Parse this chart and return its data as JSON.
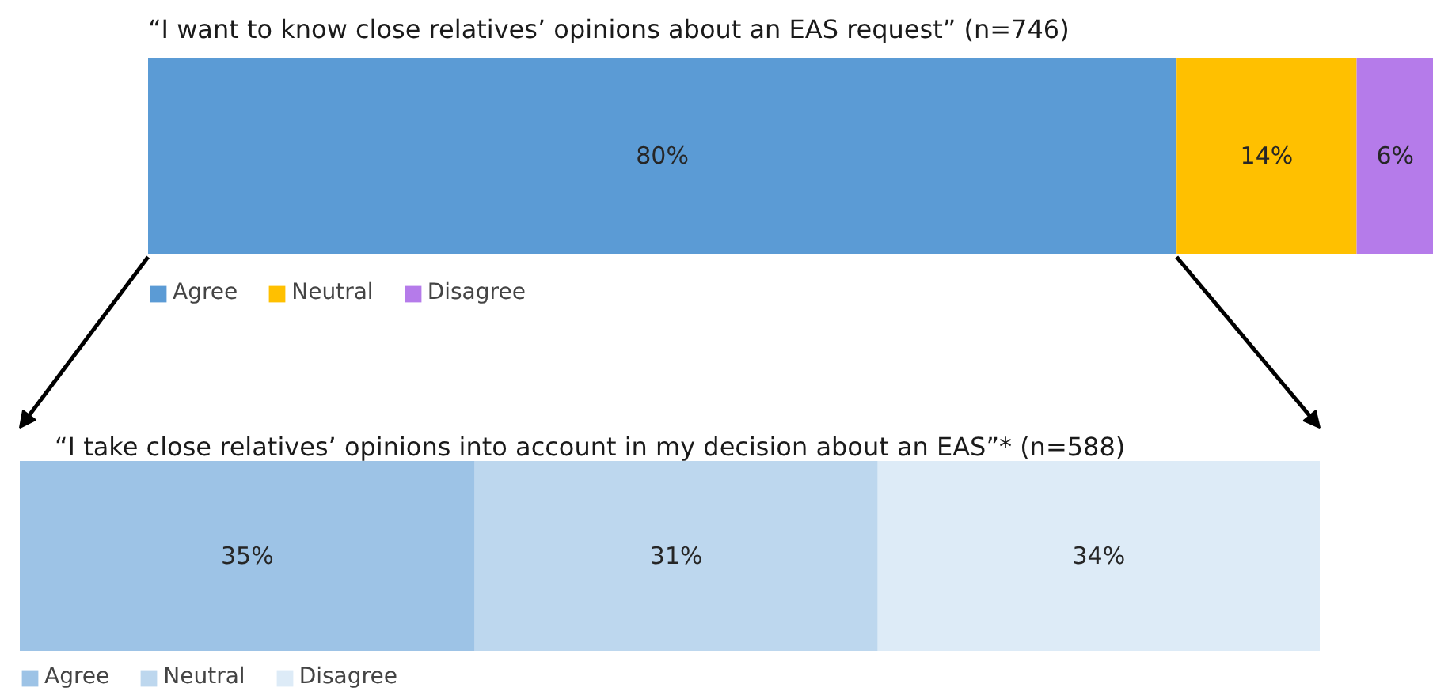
{
  "chart_data": [
    {
      "type": "bar",
      "orientation": "horizontal",
      "stacked": true,
      "title": "“I want to know close relatives’ opinions about an EAS request” (n=746)",
      "categories": [
        null
      ],
      "xlim": [
        0,
        100
      ],
      "tick_labels": false,
      "grid": false,
      "legend": "bottom left",
      "series": [
        {
          "name": "Agree",
          "color": "#5b9bd5",
          "values": [
            80
          ],
          "value_labels": [
            "80%"
          ]
        },
        {
          "name": "Neutral",
          "color": "#ffc000",
          "values": [
            14
          ],
          "value_labels": [
            "14%"
          ]
        },
        {
          "name": "Disagree",
          "color": "#b57bea",
          "values": [
            6
          ],
          "value_labels": [
            "6%"
          ]
        }
      ]
    },
    {
      "type": "bar",
      "orientation": "horizontal",
      "stacked": true,
      "title": "“I take close relatives’ opinions into account in my decision about an EAS”* (n=588)",
      "categories": [
        null
      ],
      "xlim": [
        0,
        100
      ],
      "tick_labels": false,
      "grid": false,
      "legend": "bottom left",
      "series": [
        {
          "name": "Agree",
          "color": "#9dc3e6",
          "values": [
            35
          ],
          "value_labels": [
            "35%"
          ]
        },
        {
          "name": "Neutral",
          "color": "#bdd7ee",
          "values": [
            31
          ],
          "value_labels": [
            "31%"
          ]
        },
        {
          "name": "Disagree",
          "color": "#ddebf7",
          "values": [
            34
          ],
          "value_labels": [
            "34%"
          ]
        }
      ]
    }
  ]
}
